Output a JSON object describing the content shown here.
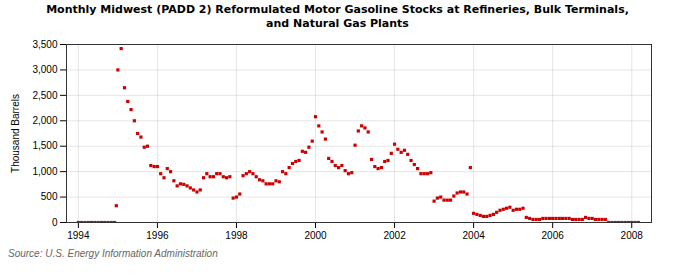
{
  "chart_data": {
    "type": "scatter",
    "title": "Monthly Midwest (PADD 2) Reformulated Motor Gasoline Stocks at Refineries, Bulk Terminals,\nand Natural Gas Plants",
    "ylabel": "Thousand Barrels",
    "source": "Source: U.S. Energy Information Administration",
    "color": "#cc0000",
    "marker": "square",
    "grid": true,
    "xlim": [
      1993.7,
      2008.5
    ],
    "xticks": [
      1994,
      1996,
      1998,
      2000,
      2002,
      2004,
      2006,
      2008
    ],
    "ylim": [
      0,
      3500
    ],
    "yticks": [
      0,
      500,
      {
        "value": 1000,
        "label": "1,000"
      },
      {
        "value": 1500,
        "label": "1,500"
      },
      {
        "value": 2000,
        "label": "2,000"
      },
      {
        "value": 2500,
        "label": "2,500"
      },
      {
        "value": 3000,
        "label": "3,000"
      },
      {
        "value": 3500,
        "label": "3,500"
      }
    ],
    "x": [
      1994.0,
      1994.083,
      1994.167,
      1994.25,
      1994.333,
      1994.417,
      1994.5,
      1994.583,
      1994.667,
      1994.75,
      1994.833,
      1994.917,
      1994.96,
      1995.0,
      1995.083,
      1995.167,
      1995.25,
      1995.333,
      1995.417,
      1995.5,
      1995.583,
      1995.667,
      1995.75,
      1995.833,
      1995.917,
      1996.0,
      1996.083,
      1996.167,
      1996.25,
      1996.333,
      1996.417,
      1996.5,
      1996.583,
      1996.667,
      1996.75,
      1996.833,
      1996.917,
      1997.0,
      1997.083,
      1997.167,
      1997.25,
      1997.333,
      1997.417,
      1997.5,
      1997.583,
      1997.667,
      1997.75,
      1997.833,
      1997.917,
      1998.0,
      1998.083,
      1998.167,
      1998.25,
      1998.333,
      1998.417,
      1998.5,
      1998.583,
      1998.667,
      1998.75,
      1998.833,
      1998.917,
      1999.0,
      1999.083,
      1999.167,
      1999.25,
      1999.333,
      1999.417,
      1999.5,
      1999.583,
      1999.667,
      1999.75,
      1999.833,
      1999.917,
      2000.0,
      2000.083,
      2000.167,
      2000.25,
      2000.333,
      2000.417,
      2000.5,
      2000.583,
      2000.667,
      2000.75,
      2000.833,
      2000.917,
      2001.0,
      2001.083,
      2001.167,
      2001.25,
      2001.333,
      2001.417,
      2001.5,
      2001.583,
      2001.667,
      2001.75,
      2001.833,
      2001.917,
      2002.0,
      2002.083,
      2002.167,
      2002.25,
      2002.333,
      2002.417,
      2002.5,
      2002.583,
      2002.667,
      2002.75,
      2002.833,
      2002.917,
      2003.0,
      2003.083,
      2003.167,
      2003.25,
      2003.333,
      2003.417,
      2003.5,
      2003.583,
      2003.667,
      2003.75,
      2003.833,
      2003.917,
      2004.0,
      2004.083,
      2004.167,
      2004.25,
      2004.333,
      2004.417,
      2004.5,
      2004.583,
      2004.667,
      2004.75,
      2004.833,
      2004.917,
      2005.0,
      2005.083,
      2005.167,
      2005.25,
      2005.333,
      2005.417,
      2005.5,
      2005.583,
      2005.667,
      2005.75,
      2005.833,
      2005.917,
      2006.0,
      2006.083,
      2006.167,
      2006.25,
      2006.333,
      2006.417,
      2006.5,
      2006.583,
      2006.667,
      2006.75,
      2006.833,
      2006.917,
      2007.0,
      2007.083,
      2007.167,
      2007.25,
      2007.333,
      2007.417,
      2007.5,
      2007.583,
      2007.667,
      2007.75,
      2007.833,
      2007.917,
      2008.0,
      2008.083,
      2008.167
    ],
    "values": [
      0,
      0,
      0,
      0,
      0,
      0,
      0,
      0,
      0,
      0,
      0,
      0,
      330,
      3000,
      3420,
      2650,
      2380,
      2220,
      2000,
      1750,
      1680,
      1480,
      1500,
      1120,
      1100,
      1100,
      960,
      880,
      1060,
      1000,
      820,
      720,
      760,
      750,
      720,
      680,
      640,
      600,
      640,
      880,
      960,
      900,
      900,
      960,
      960,
      900,
      880,
      900,
      480,
      500,
      560,
      920,
      960,
      1000,
      960,
      900,
      840,
      820,
      760,
      760,
      760,
      820,
      800,
      1000,
      960,
      1080,
      1160,
      1200,
      1220,
      1400,
      1380,
      1480,
      1600,
      2080,
      1900,
      1780,
      1640,
      1260,
      1200,
      1120,
      1080,
      1120,
      1020,
      960,
      980,
      1520,
      1800,
      1900,
      1860,
      1780,
      1240,
      1100,
      1060,
      1080,
      1200,
      1220,
      1360,
      1540,
      1440,
      1380,
      1420,
      1340,
      1220,
      1140,
      1060,
      960,
      960,
      960,
      980,
      420,
      480,
      500,
      440,
      440,
      440,
      520,
      580,
      600,
      600,
      560,
      1080,
      180,
      160,
      140,
      120,
      120,
      140,
      160,
      200,
      240,
      260,
      280,
      300,
      240,
      260,
      260,
      280,
      100,
      80,
      60,
      60,
      60,
      80,
      80,
      80,
      80,
      80,
      80,
      80,
      80,
      80,
      60,
      60,
      60,
      60,
      100,
      80,
      80,
      60,
      60,
      60,
      60,
      0,
      0,
      0,
      0,
      0,
      0,
      0,
      0,
      0,
      0
    ]
  }
}
